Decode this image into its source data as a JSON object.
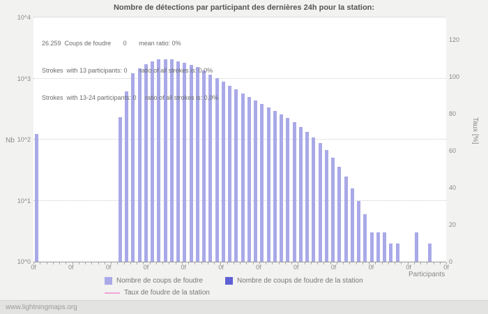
{
  "page": {
    "watermark": "www.lightningmaps.org"
  },
  "colors": {
    "strokes_bar": "#a9a9e8",
    "station_bar": "#5f5fd6",
    "rate_line": "#f0a5d7",
    "title_text": "#555555",
    "axis_text": "#888888",
    "plot_background": "#ffffff",
    "page_background": "#f2f2f0"
  },
  "chart_data": {
    "type": "bar",
    "title": "Nombre de détections par participant des dernières 24h pour la station:",
    "xlabel": "Participants",
    "ylabel_left": "Nb",
    "ylabel_right": "Taux [%]",
    "y_left_scale": "log",
    "y_left_range": [
      "10^0",
      "10^4"
    ],
    "y_right_range": [
      0,
      120
    ],
    "grid": "dotted horizontal",
    "legend_position": "bottom",
    "y_left_ticks": [
      "10^4",
      "10^3",
      "10^2",
      "10^1",
      "10^0"
    ],
    "y_right_ticks": [
      "120",
      "100",
      "80",
      "60",
      "40",
      "20",
      "0"
    ],
    "x_tick_labels": [
      "0f",
      "0f",
      "0f",
      "0f",
      "0f",
      "0f",
      "0f",
      "0f",
      "0f",
      "0f",
      "0f",
      "0f"
    ],
    "annotation_lines": [
      "26.259  Coups de foudre       0       mean ratio: 0%",
      "Strokes  with 13 participants: 0       ratio of all strokes is: 0,0%",
      "Strokes  with 13-24 participants: 0     ratio of all strokes is: 0,0%"
    ],
    "series": [
      {
        "name": "Nombre de coups de foudre",
        "type": "bar",
        "values": [
          125,
          0,
          0,
          0,
          0,
          0,
          0,
          0,
          0,
          0,
          0,
          0,
          0,
          230,
          615,
          1230,
          1480,
          1740,
          1930,
          2040,
          2090,
          2040,
          1930,
          1830,
          1690,
          1560,
          1370,
          1170,
          1020,
          895,
          760,
          665,
          570,
          500,
          435,
          382,
          334,
          292,
          257,
          225,
          192,
          159,
          132,
          107,
          87,
          68,
          51,
          36,
          25,
          16,
          10,
          6,
          3,
          3,
          3,
          2,
          2,
          0,
          0,
          3,
          0,
          2,
          0,
          0
        ]
      },
      {
        "name": "Nombre de coups de foudre de la station",
        "type": "bar",
        "values": []
      },
      {
        "name": "Taux de foudre de la station",
        "type": "line",
        "values": []
      }
    ]
  }
}
